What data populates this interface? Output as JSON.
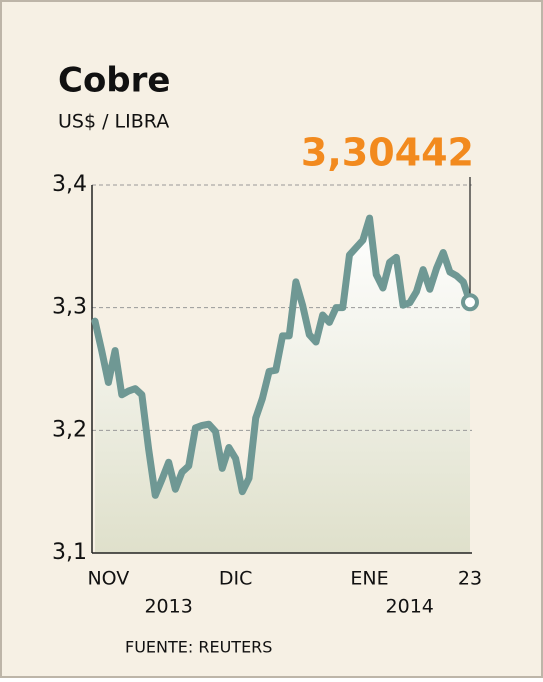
{
  "chart_data": {
    "type": "line",
    "title": "Cobre",
    "subtitle": "US$ / LIBRA",
    "source": "FUENTE: REUTERS",
    "categories": [
      null,
      null,
      "NOV",
      null,
      null,
      null,
      null,
      null,
      null,
      null,
      null,
      null,
      null,
      null,
      null,
      null,
      null,
      null,
      null,
      null,
      null,
      "DIC",
      null,
      null,
      null,
      null,
      null,
      null,
      null,
      null,
      null,
      null,
      null,
      null,
      null,
      null,
      null,
      null,
      null,
      null,
      null,
      "ENE",
      null,
      null,
      null,
      null,
      null,
      null,
      null,
      null,
      null,
      null,
      null,
      null,
      null,
      null,
      "23"
    ],
    "year_labels": [
      null,
      null,
      null,
      null,
      null,
      null,
      null,
      null,
      null,
      null,
      null,
      "2013",
      null,
      null,
      null,
      null,
      null,
      null,
      null,
      null,
      null,
      null,
      null,
      null,
      null,
      null,
      null,
      null,
      null,
      null,
      null,
      null,
      null,
      null,
      null,
      null,
      null,
      null,
      null,
      null,
      null,
      null,
      null,
      null,
      null,
      null,
      null,
      "2014",
      null,
      null,
      null,
      null,
      null,
      null,
      null,
      null,
      null
    ],
    "values": [
      3.289,
      3.265,
      3.239,
      3.265,
      3.229,
      3.232,
      3.234,
      3.229,
      3.185,
      3.147,
      3.16,
      3.174,
      3.152,
      3.166,
      3.171,
      3.202,
      3.204,
      3.205,
      3.199,
      3.169,
      3.186,
      3.177,
      3.15,
      3.161,
      3.21,
      3.226,
      3.248,
      3.249,
      3.277,
      3.277,
      3.321,
      3.302,
      3.278,
      3.272,
      3.294,
      3.288,
      3.3,
      3.3,
      3.343,
      3.349,
      3.355,
      3.373,
      3.327,
      3.316,
      3.337,
      3.341,
      3.302,
      3.304,
      3.313,
      3.331,
      3.315,
      3.332,
      3.345,
      3.329,
      3.326,
      3.321,
      3.30442
    ],
    "value_labels": [
      null,
      null,
      null,
      null,
      null,
      null,
      null,
      null,
      null,
      null,
      null,
      null,
      null,
      null,
      null,
      null,
      null,
      null,
      null,
      null,
      null,
      null,
      null,
      null,
      null,
      null,
      null,
      null,
      null,
      null,
      null,
      null,
      null,
      null,
      null,
      null,
      null,
      null,
      null,
      null,
      null,
      null,
      null,
      null,
      null,
      null,
      null,
      null,
      null,
      null,
      null,
      null,
      null,
      null,
      null,
      null,
      "3,30442"
    ],
    "color": "#6f9894",
    "label_color": "#f28a1e",
    "ylim": [
      3.1,
      3.4
    ],
    "yticks": [
      {
        "value": 3.1,
        "label": "3,1"
      },
      {
        "value": 3.2,
        "label": "3,2"
      },
      {
        "value": 3.3,
        "label": "3,3"
      },
      {
        "value": 3.4,
        "label": "3,4"
      }
    ],
    "grid": true
  }
}
